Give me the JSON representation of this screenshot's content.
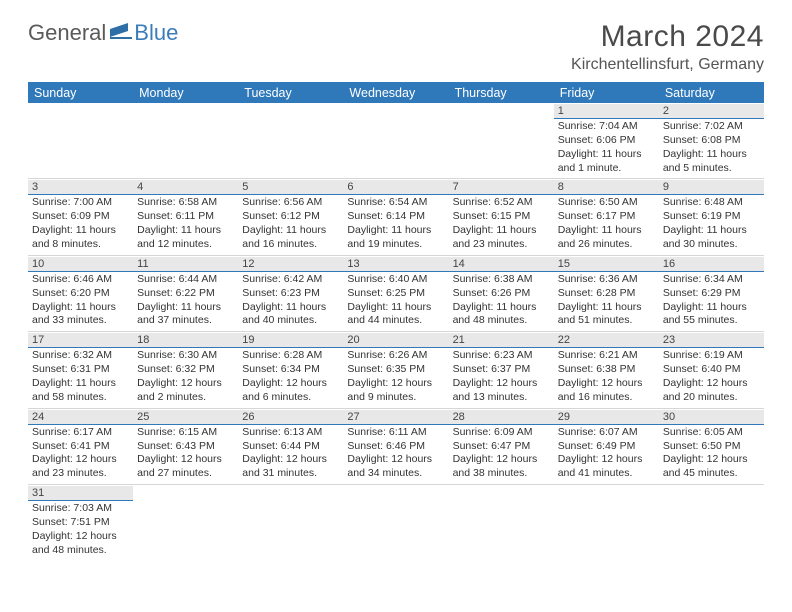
{
  "brand": {
    "part1": "General",
    "part2": "Blue"
  },
  "title": "March 2024",
  "location": "Kirchentellinsfurt, Germany",
  "colors": {
    "header_bg": "#2f78b9",
    "header_fg": "#ffffff",
    "daynum_bg": "#e8e8e8",
    "rule": "#2f78b9"
  },
  "day_headers": [
    "Sunday",
    "Monday",
    "Tuesday",
    "Wednesday",
    "Thursday",
    "Friday",
    "Saturday"
  ],
  "weeks": [
    [
      null,
      null,
      null,
      null,
      null,
      {
        "n": "1",
        "sr": "Sunrise: 7:04 AM",
        "ss": "Sunset: 6:06 PM",
        "dl": "Daylight: 11 hours and 1 minute."
      },
      {
        "n": "2",
        "sr": "Sunrise: 7:02 AM",
        "ss": "Sunset: 6:08 PM",
        "dl": "Daylight: 11 hours and 5 minutes."
      }
    ],
    [
      {
        "n": "3",
        "sr": "Sunrise: 7:00 AM",
        "ss": "Sunset: 6:09 PM",
        "dl": "Daylight: 11 hours and 8 minutes."
      },
      {
        "n": "4",
        "sr": "Sunrise: 6:58 AM",
        "ss": "Sunset: 6:11 PM",
        "dl": "Daylight: 11 hours and 12 minutes."
      },
      {
        "n": "5",
        "sr": "Sunrise: 6:56 AM",
        "ss": "Sunset: 6:12 PM",
        "dl": "Daylight: 11 hours and 16 minutes."
      },
      {
        "n": "6",
        "sr": "Sunrise: 6:54 AM",
        "ss": "Sunset: 6:14 PM",
        "dl": "Daylight: 11 hours and 19 minutes."
      },
      {
        "n": "7",
        "sr": "Sunrise: 6:52 AM",
        "ss": "Sunset: 6:15 PM",
        "dl": "Daylight: 11 hours and 23 minutes."
      },
      {
        "n": "8",
        "sr": "Sunrise: 6:50 AM",
        "ss": "Sunset: 6:17 PM",
        "dl": "Daylight: 11 hours and 26 minutes."
      },
      {
        "n": "9",
        "sr": "Sunrise: 6:48 AM",
        "ss": "Sunset: 6:19 PM",
        "dl": "Daylight: 11 hours and 30 minutes."
      }
    ],
    [
      {
        "n": "10",
        "sr": "Sunrise: 6:46 AM",
        "ss": "Sunset: 6:20 PM",
        "dl": "Daylight: 11 hours and 33 minutes."
      },
      {
        "n": "11",
        "sr": "Sunrise: 6:44 AM",
        "ss": "Sunset: 6:22 PM",
        "dl": "Daylight: 11 hours and 37 minutes."
      },
      {
        "n": "12",
        "sr": "Sunrise: 6:42 AM",
        "ss": "Sunset: 6:23 PM",
        "dl": "Daylight: 11 hours and 40 minutes."
      },
      {
        "n": "13",
        "sr": "Sunrise: 6:40 AM",
        "ss": "Sunset: 6:25 PM",
        "dl": "Daylight: 11 hours and 44 minutes."
      },
      {
        "n": "14",
        "sr": "Sunrise: 6:38 AM",
        "ss": "Sunset: 6:26 PM",
        "dl": "Daylight: 11 hours and 48 minutes."
      },
      {
        "n": "15",
        "sr": "Sunrise: 6:36 AM",
        "ss": "Sunset: 6:28 PM",
        "dl": "Daylight: 11 hours and 51 minutes."
      },
      {
        "n": "16",
        "sr": "Sunrise: 6:34 AM",
        "ss": "Sunset: 6:29 PM",
        "dl": "Daylight: 11 hours and 55 minutes."
      }
    ],
    [
      {
        "n": "17",
        "sr": "Sunrise: 6:32 AM",
        "ss": "Sunset: 6:31 PM",
        "dl": "Daylight: 11 hours and 58 minutes."
      },
      {
        "n": "18",
        "sr": "Sunrise: 6:30 AM",
        "ss": "Sunset: 6:32 PM",
        "dl": "Daylight: 12 hours and 2 minutes."
      },
      {
        "n": "19",
        "sr": "Sunrise: 6:28 AM",
        "ss": "Sunset: 6:34 PM",
        "dl": "Daylight: 12 hours and 6 minutes."
      },
      {
        "n": "20",
        "sr": "Sunrise: 6:26 AM",
        "ss": "Sunset: 6:35 PM",
        "dl": "Daylight: 12 hours and 9 minutes."
      },
      {
        "n": "21",
        "sr": "Sunrise: 6:23 AM",
        "ss": "Sunset: 6:37 PM",
        "dl": "Daylight: 12 hours and 13 minutes."
      },
      {
        "n": "22",
        "sr": "Sunrise: 6:21 AM",
        "ss": "Sunset: 6:38 PM",
        "dl": "Daylight: 12 hours and 16 minutes."
      },
      {
        "n": "23",
        "sr": "Sunrise: 6:19 AM",
        "ss": "Sunset: 6:40 PM",
        "dl": "Daylight: 12 hours and 20 minutes."
      }
    ],
    [
      {
        "n": "24",
        "sr": "Sunrise: 6:17 AM",
        "ss": "Sunset: 6:41 PM",
        "dl": "Daylight: 12 hours and 23 minutes."
      },
      {
        "n": "25",
        "sr": "Sunrise: 6:15 AM",
        "ss": "Sunset: 6:43 PM",
        "dl": "Daylight: 12 hours and 27 minutes."
      },
      {
        "n": "26",
        "sr": "Sunrise: 6:13 AM",
        "ss": "Sunset: 6:44 PM",
        "dl": "Daylight: 12 hours and 31 minutes."
      },
      {
        "n": "27",
        "sr": "Sunrise: 6:11 AM",
        "ss": "Sunset: 6:46 PM",
        "dl": "Daylight: 12 hours and 34 minutes."
      },
      {
        "n": "28",
        "sr": "Sunrise: 6:09 AM",
        "ss": "Sunset: 6:47 PM",
        "dl": "Daylight: 12 hours and 38 minutes."
      },
      {
        "n": "29",
        "sr": "Sunrise: 6:07 AM",
        "ss": "Sunset: 6:49 PM",
        "dl": "Daylight: 12 hours and 41 minutes."
      },
      {
        "n": "30",
        "sr": "Sunrise: 6:05 AM",
        "ss": "Sunset: 6:50 PM",
        "dl": "Daylight: 12 hours and 45 minutes."
      }
    ],
    [
      {
        "n": "31",
        "sr": "Sunrise: 7:03 AM",
        "ss": "Sunset: 7:51 PM",
        "dl": "Daylight: 12 hours and 48 minutes."
      },
      null,
      null,
      null,
      null,
      null,
      null
    ]
  ]
}
